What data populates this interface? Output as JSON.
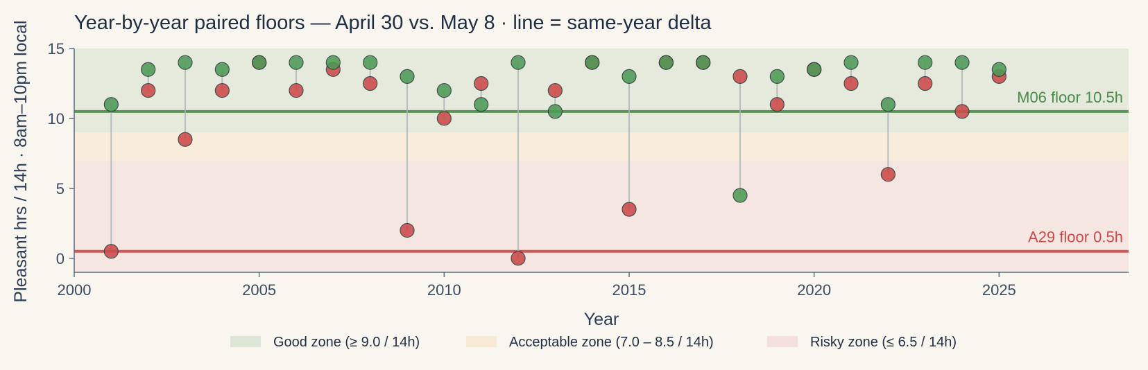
{
  "chart_data": {
    "type": "scatter",
    "title": "Year-by-year paired floors — April 30 vs. May 8  ·  line = same-year delta",
    "xlabel": "Year",
    "ylabel": "Pleasant hrs / 14h · 8am–10pm local",
    "xlim": [
      2000,
      28.5
    ],
    "ylim": [
      -1,
      15
    ],
    "x_ticks": [
      2000,
      2005,
      2010,
      2015,
      2020,
      2025
    ],
    "y_ticks": [
      0,
      5,
      10,
      15
    ],
    "grid": false,
    "zones": [
      {
        "name": "Good zone (≥ 9.0 / 14h)",
        "from": 9,
        "to": 15,
        "color": "#dde6d6"
      },
      {
        "name": "Acceptable zone (7.0 – 8.5 / 14h)",
        "from": 7,
        "to": 9,
        "color": "#f7ead6"
      },
      {
        "name": "Risky zone (≤ 6.5 / 14h)",
        "from": -1,
        "to": 7,
        "color": "#f4e0dc"
      }
    ],
    "reference_lines": [
      {
        "label": "M06 floor 10.5h",
        "y": 10.5,
        "color": "#4a8c4a"
      },
      {
        "label": "A29 floor 0.5h",
        "y": 0.5,
        "color": "#cc4a4a"
      }
    ],
    "x": [
      2001,
      2002,
      2003,
      2004,
      2005,
      2006,
      2007,
      2008,
      2009,
      2010,
      2011,
      2012,
      2013,
      2014,
      2015,
      2016,
      2017,
      2018,
      2019,
      2020,
      2021,
      2022,
      2023,
      2024,
      2025
    ],
    "series": [
      {
        "key": "may8",
        "color": "#4e9a56",
        "values": [
          11,
          13.5,
          14,
          13.5,
          14,
          14,
          14,
          14,
          13,
          12,
          11,
          14,
          10.5,
          14,
          13,
          14,
          14,
          4.5,
          13,
          13.5,
          14,
          11,
          14,
          14,
          13.5
        ]
      },
      {
        "key": "apr30",
        "color": "#cc4a4a",
        "values": [
          0.5,
          12,
          8.5,
          12,
          14,
          12,
          13.5,
          12.5,
          2,
          10,
          12.5,
          0,
          12,
          14,
          3.5,
          14,
          14,
          13,
          11,
          13.5,
          12.5,
          6,
          12.5,
          10.5,
          13
        ]
      }
    ],
    "legend_position": "bottom"
  }
}
